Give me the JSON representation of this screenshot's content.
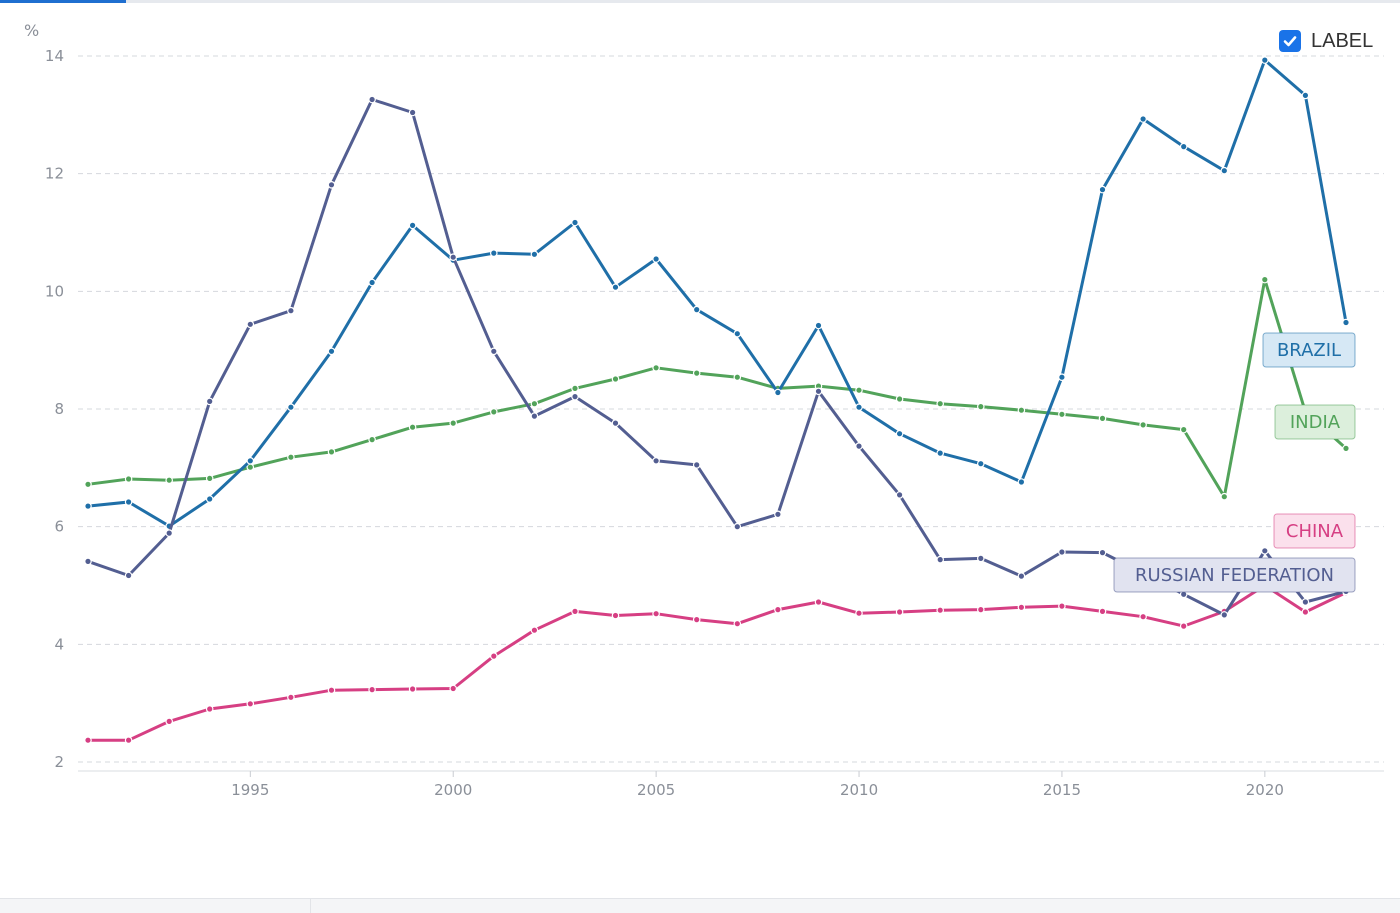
{
  "toggle": {
    "label": "LABEL",
    "checked": true
  },
  "chart_data": {
    "type": "line",
    "ylabel": "%",
    "ylim": [
      2,
      14
    ],
    "yticks": [
      2,
      4,
      6,
      8,
      10,
      12,
      14
    ],
    "xlim": [
      1991,
      2022
    ],
    "xticks": [
      1995,
      2000,
      2005,
      2010,
      2015,
      2020
    ],
    "grid": true,
    "x": [
      1991,
      1992,
      1993,
      1994,
      1995,
      1996,
      1997,
      1998,
      1999,
      2000,
      2001,
      2002,
      2003,
      2004,
      2005,
      2006,
      2007,
      2008,
      2009,
      2010,
      2011,
      2012,
      2013,
      2014,
      2015,
      2016,
      2017,
      2018,
      2019,
      2020,
      2021,
      2022
    ],
    "series": [
      {
        "name": "BRAZIL",
        "color": "#1f6fa8",
        "label_bg": "#d6e8f5",
        "values": [
          6.35,
          6.42,
          6.01,
          6.47,
          7.12,
          8.03,
          8.98,
          10.15,
          11.12,
          10.53,
          10.65,
          10.63,
          11.17,
          10.07,
          10.55,
          9.69,
          9.28,
          8.28,
          9.42,
          8.03,
          7.58,
          7.25,
          7.07,
          6.76,
          8.54,
          11.73,
          12.93,
          12.46,
          12.05,
          13.93,
          13.33,
          9.47
        ]
      },
      {
        "name": "INDIA",
        "color": "#52a35a",
        "label_bg": "#dcefdc",
        "values": [
          6.72,
          6.81,
          6.79,
          6.82,
          7.01,
          7.18,
          7.27,
          7.48,
          7.69,
          7.76,
          7.95,
          8.09,
          8.35,
          8.51,
          8.7,
          8.61,
          8.54,
          8.35,
          8.39,
          8.32,
          8.17,
          8.09,
          8.04,
          7.98,
          7.91,
          7.84,
          7.73,
          7.65,
          6.51,
          10.2,
          7.95,
          7.33
        ]
      },
      {
        "name": "CHINA",
        "color": "#d63f83",
        "label_bg": "#fbe0ec",
        "values": [
          2.37,
          2.37,
          2.69,
          2.9,
          2.99,
          3.1,
          3.22,
          3.23,
          3.24,
          3.25,
          3.8,
          4.24,
          4.56,
          4.49,
          4.52,
          4.42,
          4.35,
          4.59,
          4.72,
          4.53,
          4.55,
          4.58,
          4.59,
          4.63,
          4.65,
          4.56,
          4.47,
          4.31,
          4.56,
          5.0,
          4.55,
          4.88
        ]
      },
      {
        "name": "RUSSIAN FEDERATION",
        "color": "#535e91",
        "label_bg": "#e1e3f0",
        "values": [
          5.41,
          5.17,
          5.89,
          8.13,
          9.44,
          9.67,
          11.81,
          13.26,
          13.04,
          10.58,
          8.98,
          7.88,
          8.21,
          7.76,
          7.12,
          7.05,
          6.0,
          6.21,
          8.3,
          7.37,
          6.54,
          5.44,
          5.46,
          5.16,
          5.57,
          5.56,
          5.21,
          4.85,
          4.5,
          5.59,
          4.72,
          4.9
        ]
      }
    ]
  }
}
